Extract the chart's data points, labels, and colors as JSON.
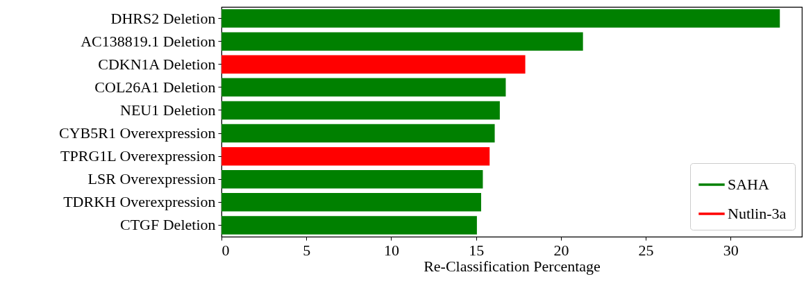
{
  "chart_data": {
    "type": "bar",
    "orientation": "horizontal",
    "xlabel": "Re-Classification Percentage",
    "categories": [
      "DHRS2 Deletion",
      "AC138819.1 Deletion",
      "CDKN1A Deletion",
      "COL26A1 Deletion",
      "NEU1 Deletion",
      "CYB5R1 Overexpression",
      "TPRG1L Overexpression",
      "LSR Overexpression",
      "TDRKH Overexpression",
      "CTGF  Deletion"
    ],
    "series": [
      {
        "name": "SAHA",
        "color": "#008000",
        "values": [
          32.9,
          21.3,
          null,
          16.75,
          16.4,
          16.1,
          null,
          15.4,
          15.3,
          15.05
        ]
      },
      {
        "name": "Nutlin-3a",
        "color": "#ff0000",
        "values": [
          null,
          null,
          17.9,
          null,
          null,
          null,
          15.8,
          null,
          null,
          null
        ]
      }
    ],
    "xlim": [
      0,
      34.2
    ],
    "xticks": [
      0,
      5,
      10,
      15,
      20,
      25,
      30
    ],
    "legend": "bottom right",
    "grid": false
  }
}
